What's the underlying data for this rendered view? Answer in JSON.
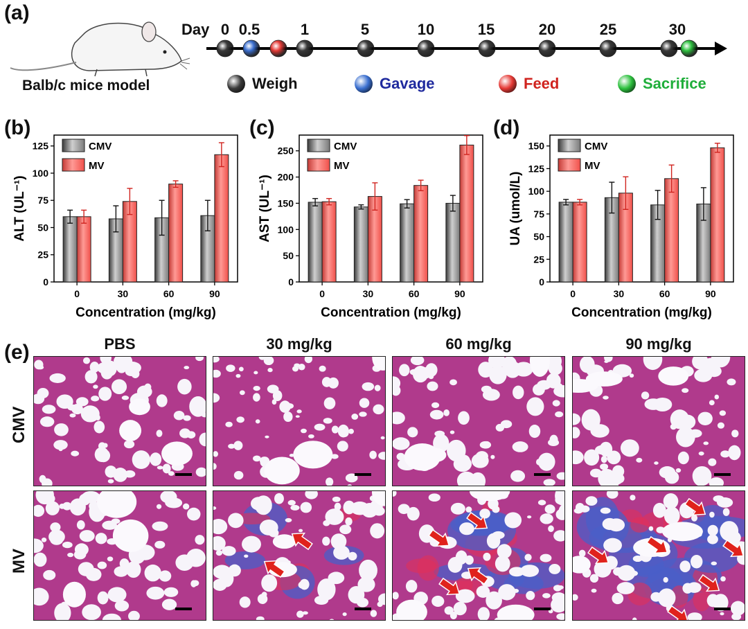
{
  "figure": {
    "panel_labels": [
      "(a)",
      "(b)",
      "(c)",
      "(d)",
      "(e)"
    ],
    "timeline": {
      "day_label": "Day",
      "ticks": [
        "0",
        "0.5",
        "1",
        "5",
        "10",
        "15",
        "20",
        "25",
        "30"
      ],
      "mouse_caption": "Balb/c mice model",
      "legend": [
        {
          "name": "Weigh",
          "color": "#111111",
          "dot": "#3a3a3a"
        },
        {
          "name": "Gavage",
          "color": "#1f2a9e",
          "dot": "#3a6fd0"
        },
        {
          "name": "Feed",
          "color": "#d0231e",
          "dot": "#e53a36"
        },
        {
          "name": "Sacrifice",
          "color": "#1fae3a",
          "dot": "#2ec13f"
        }
      ]
    },
    "histology": {
      "col_headers": [
        "PBS",
        "30 mg/kg",
        "60 mg/kg",
        "90 mg/kg"
      ],
      "row_labels": [
        "CMV",
        "MV"
      ]
    }
  },
  "chart_data": [
    {
      "type": "bar",
      "panel": "(b)",
      "categories": [
        "0",
        "30",
        "60",
        "90"
      ],
      "xlabel": "Concentration (mg/kg)",
      "ylabel": "ALT (UL⁻¹)",
      "ylim": [
        0,
        135
      ],
      "yticks": [
        "0",
        "25",
        "50",
        "75",
        "100",
        "125"
      ],
      "series": [
        {
          "name": "CMV",
          "color": "#7a7a7a",
          "values": [
            60,
            58,
            59,
            61
          ],
          "errors": [
            6,
            12,
            16,
            14
          ]
        },
        {
          "name": "MV",
          "color": "#f0504a",
          "values": [
            60,
            74,
            90,
            117
          ],
          "errors": [
            6,
            12,
            3,
            11
          ]
        }
      ]
    },
    {
      "type": "bar",
      "panel": "(c)",
      "categories": [
        "0",
        "30",
        "60",
        "90"
      ],
      "xlabel": "Concentration (mg/kg)",
      "ylabel": "AST (UL⁻¹)",
      "ylim": [
        0,
        280
      ],
      "yticks": [
        "0",
        "50",
        "100",
        "150",
        "200",
        "250"
      ],
      "series": [
        {
          "name": "CMV",
          "color": "#7a7a7a",
          "values": [
            152,
            143,
            149,
            150
          ],
          "errors": [
            7,
            4,
            8,
            15
          ]
        },
        {
          "name": "MV",
          "color": "#f0504a",
          "values": [
            153,
            163,
            184,
            261
          ],
          "errors": [
            6,
            26,
            10,
            18
          ]
        }
      ]
    },
    {
      "type": "bar",
      "panel": "(d)",
      "categories": [
        "0",
        "30",
        "60",
        "90"
      ],
      "xlabel": "Concentration (mg/kg)",
      "ylabel": "UA (umol/L)",
      "ylim": [
        0,
        162
      ],
      "yticks": [
        "0",
        "25",
        "50",
        "75",
        "100",
        "125",
        "150"
      ],
      "series": [
        {
          "name": "CMV",
          "color": "#7a7a7a",
          "values": [
            88,
            93,
            85,
            86
          ],
          "errors": [
            3,
            17,
            16,
            18
          ]
        },
        {
          "name": "MV",
          "color": "#f0504a",
          "values": [
            88,
            98,
            114,
            148
          ],
          "errors": [
            3,
            18,
            15,
            5
          ]
        }
      ]
    }
  ]
}
